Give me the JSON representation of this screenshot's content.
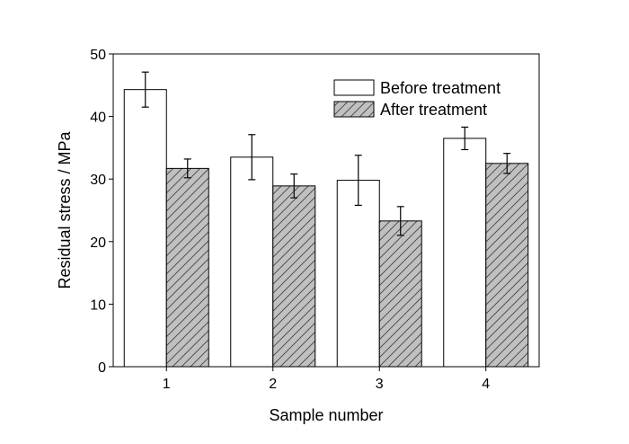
{
  "chart_data": {
    "type": "bar",
    "title": "",
    "xlabel": "Sample number",
    "ylabel": "Residual stress / MPa",
    "ylim": [
      0,
      50
    ],
    "yticks": [
      0,
      10,
      20,
      30,
      40,
      50
    ],
    "categories": [
      "1",
      "2",
      "3",
      "4"
    ],
    "grid": false,
    "legend_position": "top-right",
    "series": [
      {
        "name": "Before treatment",
        "values": [
          44.3,
          33.5,
          29.8,
          36.5
        ],
        "errors": [
          2.8,
          3.6,
          4.0,
          1.8
        ],
        "fill": "#ffffff",
        "hatch": false
      },
      {
        "name": "After treatment",
        "values": [
          31.7,
          28.9,
          23.3,
          32.5
        ],
        "errors": [
          1.5,
          1.9,
          2.3,
          1.6
        ],
        "fill": "#c0c0c0",
        "hatch": true
      }
    ]
  }
}
